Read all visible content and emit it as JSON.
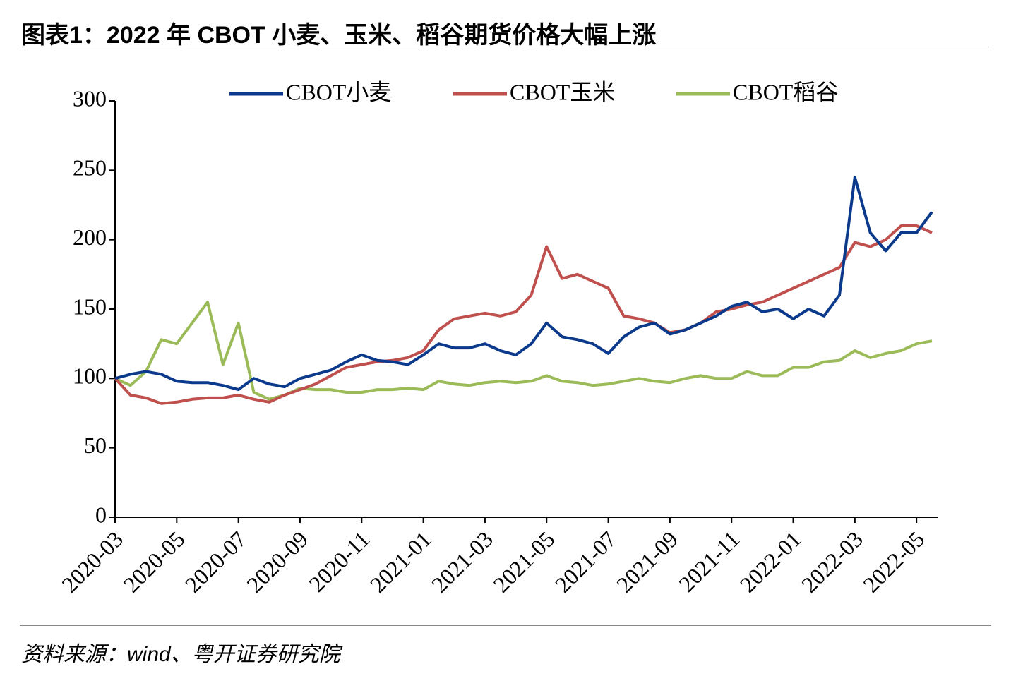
{
  "title": "图表1：2022 年 CBOT 小麦、玉米、稻谷期货价格大幅上涨",
  "source": "资料来源：wind、粤开证券研究院",
  "chart_data": {
    "type": "line",
    "categories": [
      "2020-03",
      null,
      null,
      null,
      "2020-05",
      null,
      null,
      null,
      "2020-07",
      null,
      null,
      null,
      "2020-09",
      null,
      null,
      null,
      "2020-11",
      null,
      null,
      null,
      "2021-01",
      null,
      null,
      null,
      "2021-03",
      null,
      null,
      null,
      "2021-05",
      null,
      null,
      null,
      "2021-07",
      null,
      null,
      null,
      "2021-09",
      null,
      null,
      null,
      "2021-11",
      null,
      null,
      null,
      "2022-01",
      null,
      null,
      null,
      "2022-03",
      null,
      null,
      null,
      "2022-05",
      null
    ],
    "series": [
      {
        "name": "CBOT小麦",
        "color": "#0b3a8c",
        "values": [
          100,
          103,
          105,
          103,
          98,
          97,
          97,
          95,
          92,
          100,
          96,
          94,
          100,
          103,
          106,
          112,
          117,
          113,
          112,
          110,
          117,
          125,
          122,
          122,
          125,
          120,
          117,
          125,
          140,
          130,
          128,
          125,
          118,
          130,
          137,
          140,
          132,
          135,
          140,
          145,
          152,
          155,
          148,
          150,
          143,
          150,
          145,
          160,
          245,
          205,
          192,
          205,
          205,
          220
        ]
      },
      {
        "name": "CBOT玉米",
        "color": "#c0504d",
        "values": [
          100,
          88,
          86,
          82,
          83,
          85,
          86,
          86,
          88,
          85,
          83,
          88,
          92,
          96,
          102,
          108,
          110,
          112,
          113,
          115,
          120,
          135,
          143,
          145,
          147,
          145,
          148,
          160,
          195,
          172,
          175,
          170,
          165,
          145,
          143,
          140,
          133,
          135,
          140,
          148,
          150,
          153,
          155,
          160,
          165,
          170,
          175,
          180,
          198,
          195,
          200,
          210,
          210,
          205
        ]
      },
      {
        "name": "CBOT稻谷",
        "color": "#9bbb59",
        "values": [
          100,
          95,
          105,
          128,
          125,
          140,
          155,
          110,
          140,
          90,
          85,
          88,
          93,
          92,
          92,
          90,
          90,
          92,
          92,
          93,
          92,
          98,
          96,
          95,
          97,
          98,
          97,
          98,
          102,
          98,
          97,
          95,
          96,
          98,
          100,
          98,
          97,
          100,
          102,
          100,
          100,
          105,
          102,
          102,
          108,
          108,
          112,
          113,
          120,
          115,
          118,
          120,
          125,
          127
        ]
      }
    ],
    "ylim": [
      0,
      300
    ],
    "yticks": [
      0,
      50,
      100,
      150,
      200,
      250,
      300
    ],
    "legend": "top",
    "grid": false
  }
}
